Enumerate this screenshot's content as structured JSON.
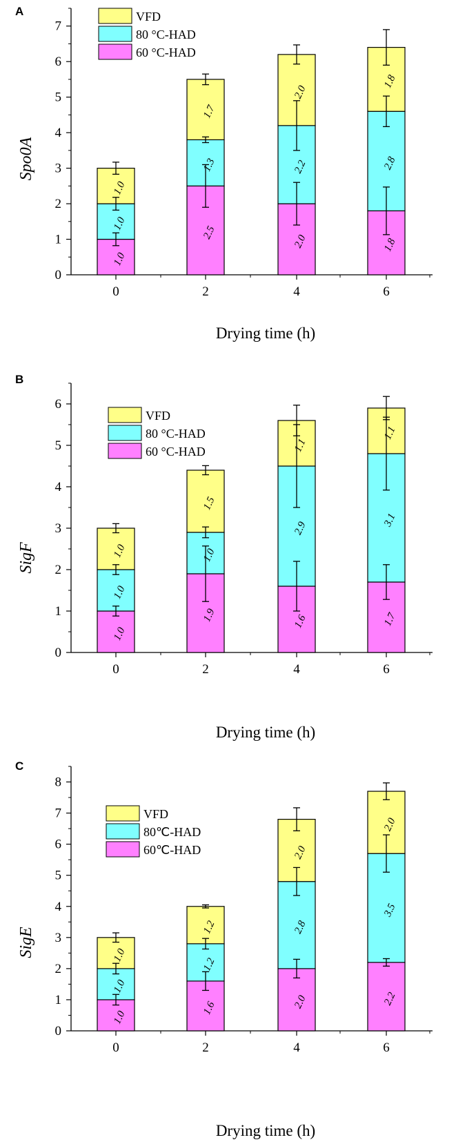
{
  "colors": {
    "VFD": "#ffff88",
    "80HAD": "#80ffff",
    "60HAD": "#ff80ff",
    "stroke": "#000000"
  },
  "chart_data": [
    {
      "panel": "A",
      "type": "bar",
      "stacked": true,
      "title": "",
      "xlabel": "Drying time (h)",
      "ylabel": "Spo0A",
      "ylim": [
        0,
        7.5
      ],
      "yticks": [
        0,
        1,
        2,
        3,
        4,
        5,
        6,
        7
      ],
      "categories": [
        "0",
        "2",
        "4",
        "6"
      ],
      "legend_position": "top-left",
      "series": [
        {
          "name": "60 °C-HAD",
          "color_key": "60HAD",
          "values": [
            1.0,
            2.5,
            2.0,
            1.8
          ],
          "labels": [
            "1.0",
            "2.5",
            "2.0",
            "1.8"
          ],
          "errors": [
            0.18,
            0.6,
            0.6,
            0.67
          ]
        },
        {
          "name": "80 °C-HAD",
          "color_key": "80HAD",
          "values": [
            1.0,
            1.3,
            2.2,
            2.8
          ],
          "labels": [
            "1.0",
            "1.3",
            "2.2",
            "2.8"
          ],
          "errors": [
            0.18,
            0.08,
            0.7,
            0.43
          ]
        },
        {
          "name": "VFD",
          "color_key": "VFD",
          "values": [
            1.0,
            1.7,
            2.0,
            1.8
          ],
          "labels": [
            "1.0",
            "1.7",
            "2.0",
            "1.8"
          ],
          "errors": [
            0.17,
            0.15,
            0.27,
            0.5
          ]
        }
      ]
    },
    {
      "panel": "B",
      "type": "bar",
      "stacked": true,
      "title": "",
      "xlabel": "Drying time (h)",
      "ylabel": "SigF",
      "ylim": [
        0,
        6.5
      ],
      "yticks": [
        0,
        1,
        2,
        3,
        4,
        5,
        6
      ],
      "categories": [
        "0",
        "2",
        "4",
        "6"
      ],
      "legend_position": "top-left",
      "series": [
        {
          "name": "60 °C-HAD",
          "color_key": "60HAD",
          "values": [
            1.0,
            1.9,
            1.6,
            1.7
          ],
          "labels": [
            "1.0",
            "1.9",
            "1.6",
            "1.7"
          ],
          "errors": [
            0.12,
            0.67,
            0.6,
            0.42
          ]
        },
        {
          "name": "80 °C-HAD",
          "color_key": "80HAD",
          "values": [
            1.0,
            1.0,
            2.9,
            3.1
          ],
          "labels": [
            "1.0",
            "1.0",
            "2.9",
            "3.1"
          ],
          "errors": [
            0.12,
            0.13,
            1.0,
            0.88
          ]
        },
        {
          "name": "VFD",
          "color_key": "VFD",
          "values": [
            1.0,
            1.5,
            1.1,
            1.1
          ],
          "labels": [
            "1.0",
            "1.5",
            "1.1",
            "1.1"
          ],
          "errors": [
            0.11,
            0.11,
            0.37,
            0.28
          ]
        }
      ]
    },
    {
      "panel": "C",
      "type": "bar",
      "stacked": true,
      "title": "",
      "xlabel": "Drying time (h)",
      "ylabel": "SigE",
      "ylim": [
        0,
        8.5
      ],
      "yticks": [
        0,
        1,
        2,
        3,
        4,
        5,
        6,
        7,
        8
      ],
      "categories": [
        "0",
        "2",
        "4",
        "6"
      ],
      "legend_position": "top-left",
      "series": [
        {
          "name": "60℃-HAD",
          "color_key": "60HAD",
          "values": [
            1.0,
            1.6,
            2.0,
            2.2
          ],
          "labels": [
            "1.0",
            "1.6",
            "2.0",
            "2.2"
          ],
          "errors": [
            0.17,
            0.3,
            0.3,
            0.12
          ]
        },
        {
          "name": "80℃-HAD",
          "color_key": "80HAD",
          "values": [
            1.0,
            1.2,
            2.8,
            3.5
          ],
          "labels": [
            "1.0",
            "1.2",
            "2.8",
            "3.5"
          ],
          "errors": [
            0.17,
            0.17,
            0.45,
            0.6
          ]
        },
        {
          "name": "VFD",
          "color_key": "VFD",
          "values": [
            1.0,
            1.2,
            2.0,
            2.0
          ],
          "labels": [
            "1.0",
            "1.2",
            "2.0",
            "2.0"
          ],
          "errors": [
            0.15,
            0.05,
            0.37,
            0.27
          ]
        }
      ]
    }
  ]
}
